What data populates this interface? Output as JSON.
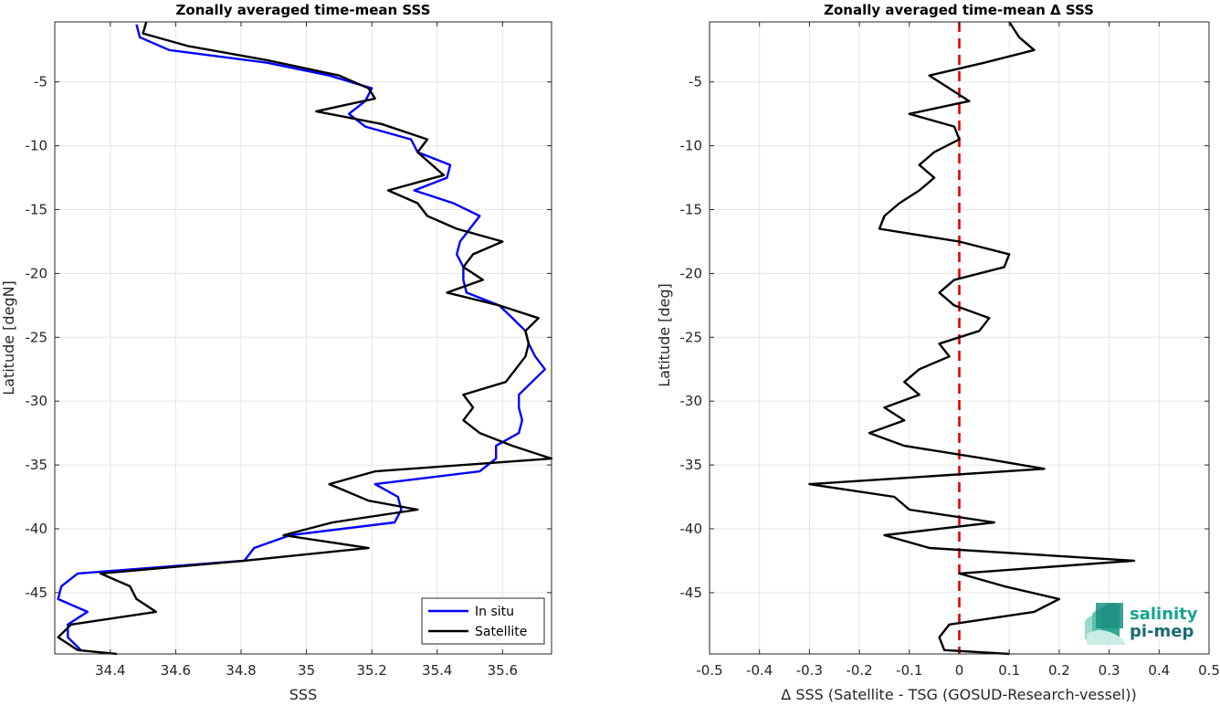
{
  "colors": {
    "insitu": "#0000ff",
    "satellite": "#000000",
    "zero_line": "#e00000",
    "grid": "#e6e6e6",
    "axis": "#262626"
  },
  "logo": {
    "line1": "salinity",
    "line2": "pi-mep"
  },
  "chart_data": [
    {
      "type": "line",
      "title": "Zonally averaged time-mean SSS",
      "xlabel": "SSS",
      "ylabel": "Latitude [degN]",
      "xlim": [
        34.23,
        35.75
      ],
      "ylim": [
        -49.8,
        -0.3
      ],
      "xticks": [
        34.4,
        34.6,
        34.8,
        35,
        35.2,
        35.4,
        35.6
      ],
      "xtick_labels": [
        "34.4",
        "34.6",
        "34.8",
        "35",
        "35.2",
        "35.4",
        "35.6"
      ],
      "yticks": [
        -5,
        -10,
        -15,
        -20,
        -25,
        -30,
        -35,
        -40,
        -45
      ],
      "ytick_labels": [
        "-5",
        "-10",
        "-15",
        "-20",
        "-25",
        "-30",
        "-35",
        "-40",
        "-45"
      ],
      "grid": true,
      "legend_position": "bottom-right",
      "series": [
        {
          "name": "In situ",
          "color": "#0000ff",
          "points": [
            [
              34.48,
              -0.5
            ],
            [
              34.49,
              -1.5
            ],
            [
              34.58,
              -2.5
            ],
            [
              34.88,
              -3.5
            ],
            [
              35.07,
              -4.5
            ],
            [
              35.2,
              -5.5
            ],
            [
              35.18,
              -6.5
            ],
            [
              35.13,
              -7.5
            ],
            [
              35.18,
              -8.5
            ],
            [
              35.32,
              -9.5
            ],
            [
              35.34,
              -10.5
            ],
            [
              35.44,
              -11.5
            ],
            [
              35.43,
              -12.5
            ],
            [
              35.33,
              -13.5
            ],
            [
              35.45,
              -14.5
            ],
            [
              35.53,
              -15.5
            ],
            [
              35.5,
              -16.5
            ],
            [
              35.47,
              -17.5
            ],
            [
              35.46,
              -18.5
            ],
            [
              35.48,
              -19.5
            ],
            [
              35.48,
              -20.5
            ],
            [
              35.49,
              -21.5
            ],
            [
              35.59,
              -22.5
            ],
            [
              35.63,
              -23.5
            ],
            [
              35.67,
              -24.5
            ],
            [
              35.68,
              -25.5
            ],
            [
              35.7,
              -26.5
            ],
            [
              35.73,
              -27.5
            ],
            [
              35.69,
              -28.5
            ],
            [
              35.65,
              -29.5
            ],
            [
              35.65,
              -30.5
            ],
            [
              35.66,
              -31.5
            ],
            [
              35.65,
              -32.5
            ],
            [
              35.58,
              -33.5
            ],
            [
              35.58,
              -34.5
            ],
            [
              35.53,
              -35.5
            ],
            [
              35.21,
              -36.5
            ],
            [
              35.28,
              -37.5
            ],
            [
              35.29,
              -38.5
            ],
            [
              35.27,
              -39.5
            ],
            [
              34.95,
              -40.5
            ],
            [
              34.84,
              -41.5
            ],
            [
              34.81,
              -42.5
            ],
            [
              34.3,
              -43.5
            ],
            [
              34.25,
              -44.5
            ],
            [
              34.24,
              -45.5
            ],
            [
              34.33,
              -46.5
            ],
            [
              34.27,
              -47.5
            ],
            [
              34.27,
              -48.5
            ],
            [
              34.31,
              -49.5
            ]
          ]
        },
        {
          "name": "Satellite",
          "color": "#000000",
          "points": [
            [
              34.51,
              -0.3
            ],
            [
              34.5,
              -1.2
            ],
            [
              34.64,
              -2.2
            ],
            [
              34.88,
              -3.3
            ],
            [
              35.1,
              -4.5
            ],
            [
              35.19,
              -5.5
            ],
            [
              35.21,
              -6.3
            ],
            [
              35.03,
              -7.3
            ],
            [
              35.23,
              -8.3
            ],
            [
              35.37,
              -9.5
            ],
            [
              35.34,
              -10.5
            ],
            [
              35.42,
              -12.3
            ],
            [
              35.25,
              -13.5
            ],
            [
              35.34,
              -14.5
            ],
            [
              35.37,
              -15.5
            ],
            [
              35.46,
              -16.5
            ],
            [
              35.6,
              -17.5
            ],
            [
              35.51,
              -18.5
            ],
            [
              35.48,
              -19.5
            ],
            [
              35.54,
              -20.5
            ],
            [
              35.43,
              -21.5
            ],
            [
              35.59,
              -22.5
            ],
            [
              35.71,
              -23.5
            ],
            [
              35.67,
              -24.5
            ],
            [
              35.68,
              -25.5
            ],
            [
              35.67,
              -26.5
            ],
            [
              35.64,
              -27.5
            ],
            [
              35.61,
              -28.5
            ],
            [
              35.48,
              -29.5
            ],
            [
              35.51,
              -30.5
            ],
            [
              35.48,
              -31.5
            ],
            [
              35.53,
              -32.5
            ],
            [
              35.63,
              -33.5
            ],
            [
              35.75,
              -34.5
            ],
            [
              35.21,
              -35.5
            ],
            [
              35.07,
              -36.5
            ],
            [
              35.19,
              -37.8
            ],
            [
              35.34,
              -38.5
            ],
            [
              35.08,
              -39.5
            ],
            [
              34.93,
              -40.5
            ],
            [
              35.19,
              -41.5
            ],
            [
              34.81,
              -42.5
            ],
            [
              34.37,
              -43.5
            ],
            [
              34.46,
              -44.5
            ],
            [
              34.48,
              -45.5
            ],
            [
              34.54,
              -46.5
            ],
            [
              34.28,
              -47.5
            ],
            [
              34.24,
              -48.5
            ],
            [
              34.3,
              -49.5
            ],
            [
              34.42,
              -49.8
            ]
          ]
        }
      ]
    },
    {
      "type": "line",
      "title": "Zonally averaged time-mean Δ SSS",
      "xlabel": "Δ SSS (Satellite - TSG (GOSUD-Research-vessel))",
      "ylabel": "Latitude [deg]",
      "xlim": [
        -0.5,
        0.5
      ],
      "ylim": [
        -49.8,
        -0.3
      ],
      "xticks": [
        -0.5,
        -0.4,
        -0.3,
        -0.2,
        -0.1,
        0,
        0.1,
        0.2,
        0.3,
        0.4,
        0.5
      ],
      "xtick_labels": [
        "-0.5",
        "-0.4",
        "-0.3",
        "-0.2",
        "-0.1",
        "0",
        "0.1",
        "0.2",
        "0.3",
        "0.4",
        "0.5"
      ],
      "yticks": [
        -5,
        -10,
        -15,
        -20,
        -25,
        -30,
        -35,
        -40,
        -45
      ],
      "ytick_labels": [
        "-5",
        "-10",
        "-15",
        "-20",
        "-25",
        "-30",
        "-35",
        "-40",
        "-45"
      ],
      "grid": true,
      "reference_line_x": 0,
      "series": [
        {
          "name": "",
          "color": "#000000",
          "points": [
            [
              0.1,
              -0.3
            ],
            [
              0.12,
              -1.5
            ],
            [
              0.15,
              -2.5
            ],
            [
              0.05,
              -3.5
            ],
            [
              -0.06,
              -4.5
            ],
            [
              -0.02,
              -5.5
            ],
            [
              0.02,
              -6.5
            ],
            [
              -0.1,
              -7.5
            ],
            [
              -0.01,
              -8.5
            ],
            [
              0.0,
              -9.5
            ],
            [
              -0.05,
              -10.5
            ],
            [
              -0.08,
              -11.5
            ],
            [
              -0.05,
              -12.5
            ],
            [
              -0.08,
              -13.5
            ],
            [
              -0.12,
              -14.5
            ],
            [
              -0.15,
              -15.5
            ],
            [
              -0.16,
              -16.5
            ],
            [
              0.0,
              -17.5
            ],
            [
              0.1,
              -18.5
            ],
            [
              0.09,
              -19.5
            ],
            [
              -0.01,
              -20.5
            ],
            [
              -0.04,
              -21.5
            ],
            [
              -0.01,
              -22.5
            ],
            [
              0.06,
              -23.5
            ],
            [
              0.04,
              -24.5
            ],
            [
              -0.04,
              -25.5
            ],
            [
              -0.02,
              -26.5
            ],
            [
              -0.08,
              -27.5
            ],
            [
              -0.11,
              -28.5
            ],
            [
              -0.08,
              -29.5
            ],
            [
              -0.15,
              -30.5
            ],
            [
              -0.11,
              -31.5
            ],
            [
              -0.18,
              -32.5
            ],
            [
              -0.11,
              -33.5
            ],
            [
              0.05,
              -34.5
            ],
            [
              0.17,
              -35.3
            ],
            [
              -0.3,
              -36.5
            ],
            [
              -0.13,
              -37.5
            ],
            [
              -0.1,
              -38.5
            ],
            [
              0.07,
              -39.5
            ],
            [
              -0.15,
              -40.5
            ],
            [
              -0.06,
              -41.5
            ],
            [
              0.35,
              -42.5
            ],
            [
              0.0,
              -43.5
            ],
            [
              0.09,
              -44.5
            ],
            [
              0.2,
              -45.5
            ],
            [
              0.15,
              -46.5
            ],
            [
              -0.02,
              -47.5
            ],
            [
              -0.04,
              -48.5
            ],
            [
              -0.03,
              -49.5
            ],
            [
              0.1,
              -49.8
            ]
          ]
        }
      ]
    }
  ]
}
